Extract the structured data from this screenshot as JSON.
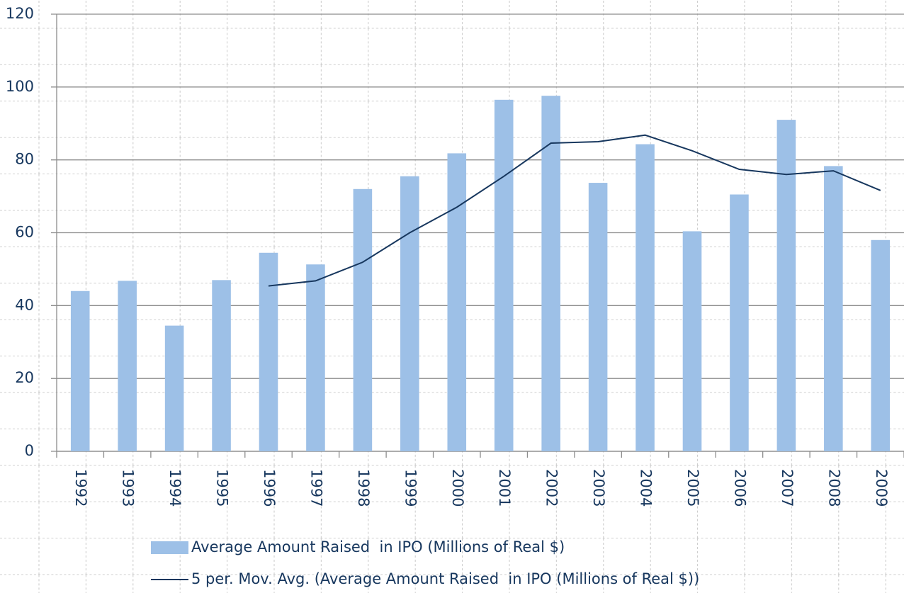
{
  "chart_data": {
    "type": "bar",
    "categories": [
      "1992",
      "1993",
      "1994",
      "1995",
      "1996",
      "1997",
      "1998",
      "1999",
      "2000",
      "2001",
      "2002",
      "2003",
      "2004",
      "2005",
      "2006",
      "2007",
      "2008",
      "2009"
    ],
    "series": [
      {
        "name": "Average Amount Raised  in IPO (Millions of Real $)",
        "type": "bar",
        "color": "#9dc0e7",
        "values": [
          44,
          46.8,
          34.5,
          47,
          54.5,
          51.3,
          72,
          75.5,
          81.8,
          96.5,
          97.6,
          73.7,
          84.3,
          60.4,
          70.5,
          91,
          78.3,
          58
        ]
      },
      {
        "name": "5 per. Mov. Avg. (Average Amount Raised  in IPO (Millions of Real $))",
        "type": "line",
        "color": "#17375e",
        "values": [
          null,
          null,
          null,
          null,
          45.4,
          46.8,
          51.9,
          60,
          67,
          75.5,
          84.6,
          85,
          86.8,
          82.5,
          77.4,
          76,
          77,
          71.6
        ]
      }
    ],
    "ylim": [
      0,
      120
    ],
    "yticks": [
      0,
      20,
      40,
      60,
      80,
      100,
      120
    ],
    "grid": true
  }
}
